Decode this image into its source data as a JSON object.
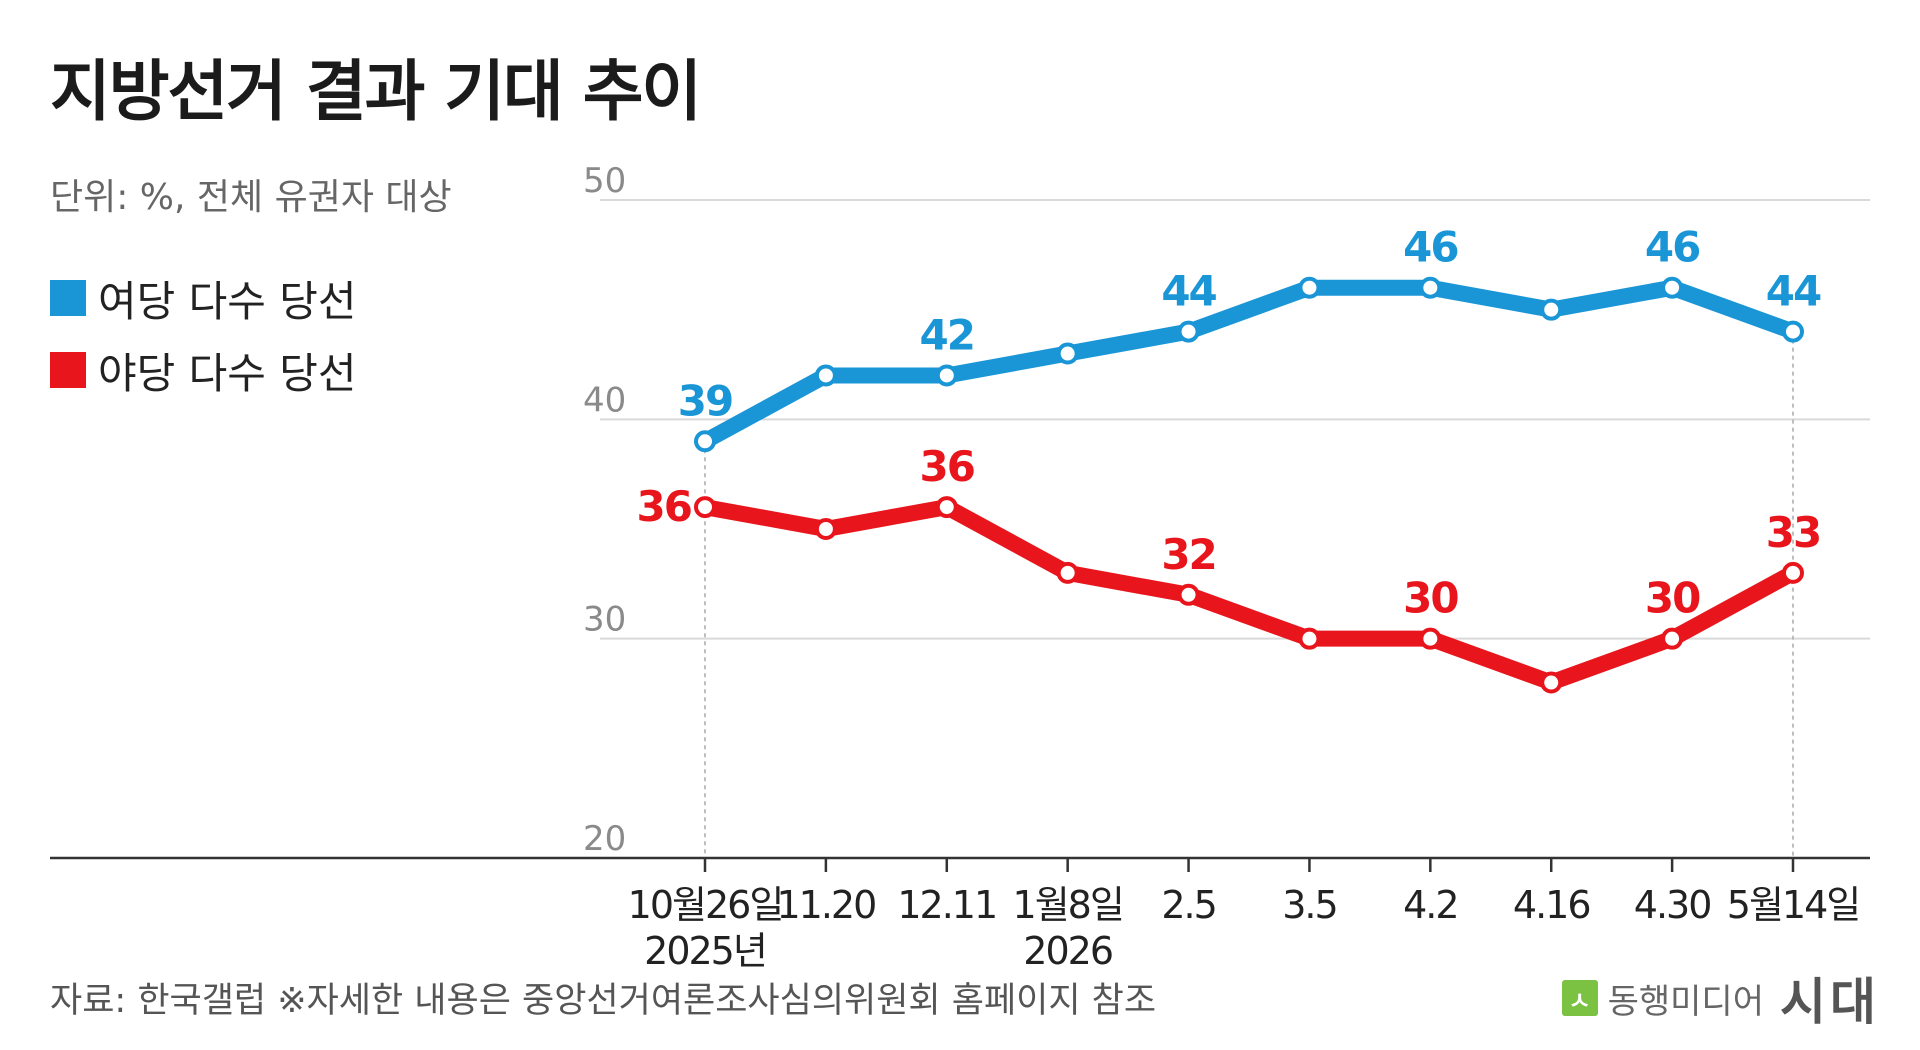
{
  "title": "지방선거 결과 기대 추이",
  "unit_note": "단위: %, 전체 유권자 대상",
  "colors": {
    "ruling": "#1a96d7",
    "opposition": "#e8161c",
    "grid": "#d9d9d9",
    "axis": "#333333"
  },
  "chart_data": {
    "type": "line",
    "x": [
      "10월26일\n2025년",
      "11.20",
      "12.11",
      "1월8일\n2026",
      "2.5",
      "3.5",
      "4.2",
      "4.16",
      "4.30",
      "5월14일"
    ],
    "yticks": [
      50,
      40,
      30,
      20
    ],
    "ylim": [
      20,
      50
    ],
    "grid": true,
    "legend_position": "left",
    "series": [
      {
        "name": "여당 다수 당선",
        "color": "#1a96d7",
        "values": [
          39,
          42,
          42,
          43,
          44,
          46,
          46,
          45,
          46,
          44
        ],
        "labels": [
          "39",
          "",
          "42",
          "",
          "44",
          "",
          "46",
          "",
          "46",
          "44"
        ]
      },
      {
        "name": "야당 다수 당선",
        "color": "#e8161c",
        "values": [
          36,
          35,
          36,
          33,
          32,
          30,
          30,
          28,
          30,
          33
        ],
        "labels": [
          "36",
          "",
          "36",
          "",
          "32",
          "",
          "30",
          "",
          "30",
          "33"
        ]
      }
    ]
  },
  "source": "자료: 한국갤럽 ※자세한 내용은 중앙선거여론조사심의위원회 홈페이지 참조",
  "brand": {
    "logo_glyph": "ㅅ",
    "name": "동행미디어",
    "mark": "시대"
  }
}
